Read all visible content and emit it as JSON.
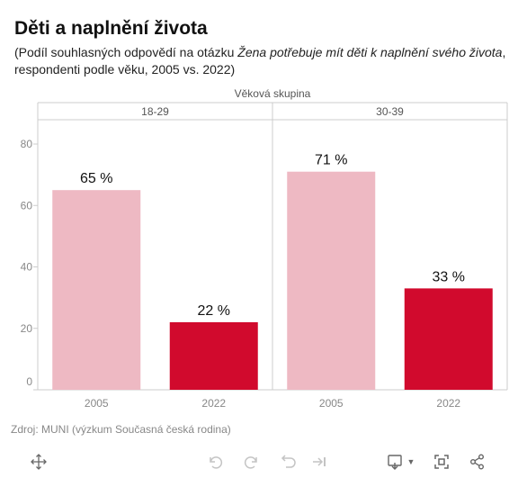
{
  "title": "Děti a naplnění života",
  "subtitle": {
    "before": "(Podíl souhlasných odpovědí na otázku ",
    "italic": "Žena potřebuje mít děti k naplnění svého života",
    "after": ", respondenti podle věku, 2005 vs. 2022)"
  },
  "source": "Zdroj: MUNI (výzkum Současná česká rodina)",
  "colors": {
    "y2005": "#eeb9c3",
    "y2022": "#d10a2d",
    "grid": "#cccccc",
    "tick": "#888888"
  },
  "chart_data": {
    "type": "bar",
    "facet_label": "Věková skupina",
    "facets": [
      {
        "name": "18-29",
        "categories": [
          "2005",
          "2022"
        ],
        "values": [
          65,
          22
        ],
        "labels": [
          "65 %",
          "22 %"
        ]
      },
      {
        "name": "30-39",
        "categories": [
          "2005",
          "2022"
        ],
        "values": [
          71,
          33
        ],
        "labels": [
          "71 %",
          "33 %"
        ]
      }
    ],
    "yticks": [
      0,
      20,
      40,
      60,
      80
    ],
    "ylim": [
      0,
      85
    ],
    "grid": false,
    "legend": "none"
  },
  "toolbar": {
    "icons": [
      "move-icon",
      "undo-icon",
      "redo-icon",
      "revert-icon",
      "pause-icon",
      "download-icon",
      "fullscreen-icon",
      "share-icon"
    ]
  }
}
